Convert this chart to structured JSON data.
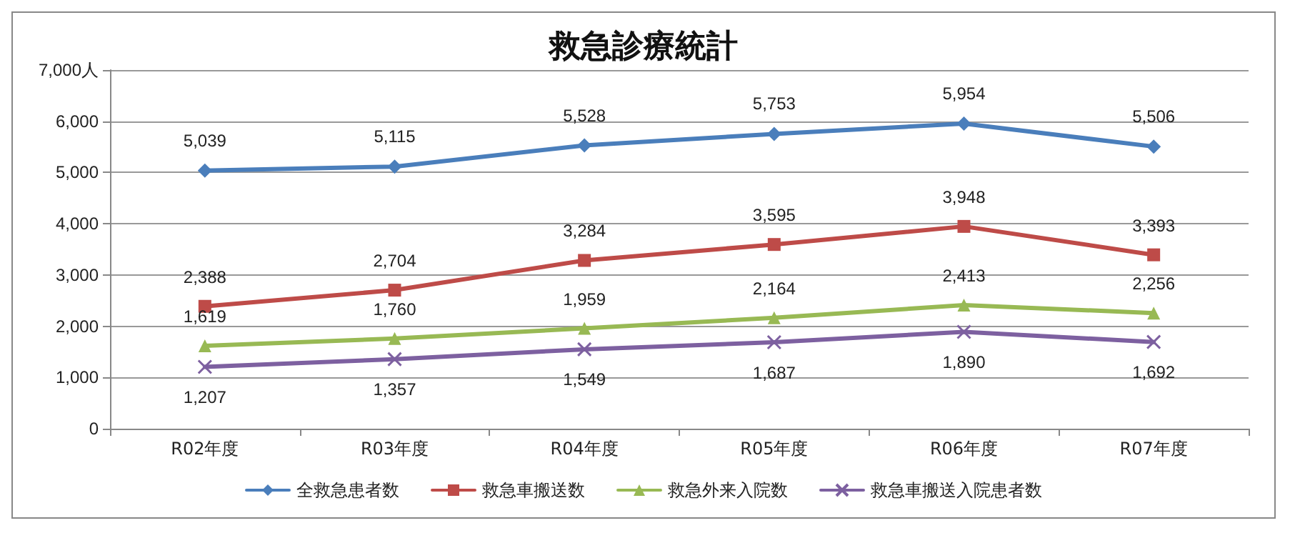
{
  "chart_data": {
    "type": "line",
    "title": "救急診療統計",
    "categories": [
      "R02年度",
      "R03年度",
      "R04年度",
      "R05年度",
      "R06年度",
      "R07年度"
    ],
    "series": [
      {
        "name": "全救急患者数",
        "color": "#4a7ebb",
        "marker": "diamond",
        "values": [
          5039,
          5115,
          5528,
          5753,
          5954,
          5506
        ],
        "value_labels": [
          "5,039",
          "5,115",
          "5,528",
          "5,753",
          "5,954",
          "5,506"
        ]
      },
      {
        "name": "救急車搬送数",
        "color": "#be4b48",
        "marker": "square",
        "values": [
          2388,
          2704,
          3284,
          3595,
          3948,
          3393
        ],
        "value_labels": [
          "2,388",
          "2,704",
          "3,284",
          "3,595",
          "3,948",
          "3,393"
        ]
      },
      {
        "name": "救急外来入院数",
        "color": "#98b954",
        "marker": "triangle",
        "values": [
          1619,
          1760,
          1959,
          2164,
          2413,
          2256
        ],
        "value_labels": [
          "1,619",
          "1,760",
          "1,959",
          "2,164",
          "2,413",
          "2,256"
        ]
      },
      {
        "name": "救急車搬送入院患者数",
        "color": "#7d60a0",
        "marker": "cross",
        "values": [
          1207,
          1357,
          1549,
          1687,
          1890,
          1692
        ],
        "value_labels": [
          "1,207",
          "1,357",
          "1,549",
          "1,687",
          "1,890",
          "1,692"
        ]
      }
    ],
    "ylim": [
      0,
      7000
    ],
    "yticks": [
      0,
      {
        "value": 1000,
        "label": "1,000"
      },
      {
        "value": 2000,
        "label": "2,000"
      },
      {
        "value": 3000,
        "label": "3,000"
      },
      {
        "value": 4000,
        "label": "4,000"
      },
      {
        "value": 5000,
        "label": "5,000"
      },
      {
        "value": 6000,
        "label": "6,000"
      },
      {
        "value": 7000,
        "label": "7,000人"
      }
    ],
    "grid": "y",
    "legend": "bottom",
    "line_style": "solid"
  }
}
